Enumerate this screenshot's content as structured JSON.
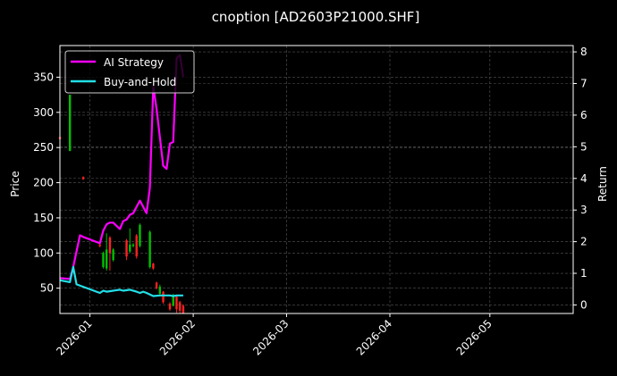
{
  "chart_data": {
    "type": "line",
    "title": "cnoption [AD2603P21000.SHF]",
    "ylabel_left": "Price",
    "ylabel_right": "Return",
    "ylim_left": [
      14,
      395
    ],
    "ylim_right": [
      -0.27,
      8.2
    ],
    "xlim": [
      "2025-12-23",
      "2026-05-26"
    ],
    "x_ticks": [
      {
        "date": "2026-01-01",
        "label": "2026-01"
      },
      {
        "date": "2026-02-01",
        "label": "2026-02"
      },
      {
        "date": "2026-03-01",
        "label": "2026-03"
      },
      {
        "date": "2026-04-01",
        "label": "2026-04"
      },
      {
        "date": "2026-05-01",
        "label": "2026-05"
      }
    ],
    "y_ticks_left": [
      50,
      100,
      150,
      200,
      250,
      300,
      350
    ],
    "y_ticks_right": [
      0,
      1,
      2,
      3,
      4,
      5,
      6,
      7,
      8
    ],
    "grid": true,
    "legend_position": "top-left",
    "colors": {
      "background": "#000000",
      "ai_strategy": "#ff00ff",
      "buy_and_hold": "#22e0e8",
      "candle_up": "#00c000",
      "candle_down": "#ff2020",
      "grid": "#555555",
      "text": "#ffffff"
    },
    "series": [
      {
        "name": "AI Strategy",
        "axis": "right",
        "x": [
          "2025-12-23",
          "2025-12-26",
          "2025-12-27",
          "2025-12-29",
          "2025-12-30",
          "2026-01-04",
          "2026-01-05",
          "2026-01-06",
          "2026-01-07",
          "2026-01-08",
          "2026-01-09",
          "2026-01-10",
          "2026-01-11",
          "2026-01-12",
          "2026-01-13",
          "2026-01-14",
          "2026-01-15",
          "2026-01-16",
          "2026-01-18",
          "2026-01-19",
          "2026-01-20",
          "2026-01-21",
          "2026-01-22",
          "2026-01-23",
          "2026-01-24",
          "2026-01-25",
          "2026-01-26",
          "2026-01-27",
          "2026-01-28",
          "2026-01-29"
        ],
        "values": [
          0.85,
          0.82,
          1.2,
          2.2,
          2.15,
          1.95,
          2.35,
          2.55,
          2.6,
          2.6,
          2.5,
          2.4,
          2.65,
          2.7,
          2.85,
          2.9,
          3.1,
          3.3,
          2.9,
          3.7,
          6.9,
          6.2,
          5.3,
          4.4,
          4.3,
          5.1,
          5.15,
          7.8,
          7.9,
          7.2
        ]
      },
      {
        "name": "Buy-and-Hold",
        "axis": "right",
        "x": [
          "2025-12-23",
          "2025-12-26",
          "2025-12-27",
          "2025-12-28",
          "2026-01-04",
          "2026-01-05",
          "2026-01-06",
          "2026-01-08",
          "2026-01-10",
          "2026-01-11",
          "2026-01-13",
          "2026-01-15",
          "2026-01-16",
          "2026-01-17",
          "2026-01-18",
          "2026-01-20",
          "2026-01-22",
          "2026-01-24",
          "2026-01-25",
          "2026-01-26",
          "2026-01-27",
          "2026-01-28",
          "2026-01-29"
        ],
        "values": [
          0.78,
          0.72,
          1.2,
          0.65,
          0.38,
          0.45,
          0.42,
          0.45,
          0.48,
          0.45,
          0.48,
          0.42,
          0.38,
          0.42,
          0.38,
          0.28,
          0.3,
          0.3,
          0.3,
          0.28,
          0.3,
          0.3,
          0.3
        ]
      }
    ],
    "candles": [
      {
        "x": "2025-12-23",
        "open": 265,
        "close": 262,
        "high": 266,
        "low": 260
      },
      {
        "x": "2025-12-26",
        "open": 245,
        "close": 325,
        "high": 325,
        "low": 245
      },
      {
        "x": "2025-12-30",
        "open": 208,
        "close": 205,
        "high": 209,
        "low": 204
      },
      {
        "x": "2026-01-04",
        "open": 112,
        "close": 110,
        "high": 113,
        "low": 108
      },
      {
        "x": "2026-01-05",
        "open": 80,
        "close": 100,
        "high": 102,
        "low": 78
      },
      {
        "x": "2026-01-06",
        "open": 78,
        "close": 105,
        "high": 128,
        "low": 75
      },
      {
        "x": "2026-01-07",
        "open": 122,
        "close": 100,
        "high": 124,
        "low": 75
      },
      {
        "x": "2026-01-08",
        "open": 90,
        "close": 105,
        "high": 107,
        "low": 88
      },
      {
        "x": "2026-01-12",
        "open": 118,
        "close": 95,
        "high": 120,
        "low": 90
      },
      {
        "x": "2026-01-13",
        "open": 102,
        "close": 112,
        "high": 135,
        "low": 100
      },
      {
        "x": "2026-01-14",
        "open": 110,
        "close": 112,
        "high": 114,
        "low": 108
      },
      {
        "x": "2026-01-15",
        "open": 125,
        "close": 95,
        "high": 127,
        "low": 92
      },
      {
        "x": "2026-01-16",
        "open": 110,
        "close": 140,
        "high": 142,
        "low": 108
      },
      {
        "x": "2026-01-19",
        "open": 80,
        "close": 130,
        "high": 132,
        "low": 78
      },
      {
        "x": "2026-01-20",
        "open": 85,
        "close": 78,
        "high": 86,
        "low": 76
      },
      {
        "x": "2026-01-21",
        "open": 58,
        "close": 50,
        "high": 59,
        "low": 48
      },
      {
        "x": "2026-01-22",
        "open": 42,
        "close": 52,
        "high": 55,
        "low": 40
      },
      {
        "x": "2026-01-23",
        "open": 45,
        "close": 30,
        "high": 46,
        "low": 28
      },
      {
        "x": "2026-01-25",
        "open": 28,
        "close": 20,
        "high": 30,
        "low": 18
      },
      {
        "x": "2026-01-26",
        "open": 25,
        "close": 40,
        "high": 42,
        "low": 24
      },
      {
        "x": "2026-01-27",
        "open": 38,
        "close": 20,
        "high": 40,
        "low": 15
      },
      {
        "x": "2026-01-28",
        "open": 30,
        "close": 18,
        "high": 32,
        "low": 15
      },
      {
        "x": "2026-01-29",
        "open": 25,
        "close": 14,
        "high": 27,
        "low": 14
      }
    ]
  }
}
